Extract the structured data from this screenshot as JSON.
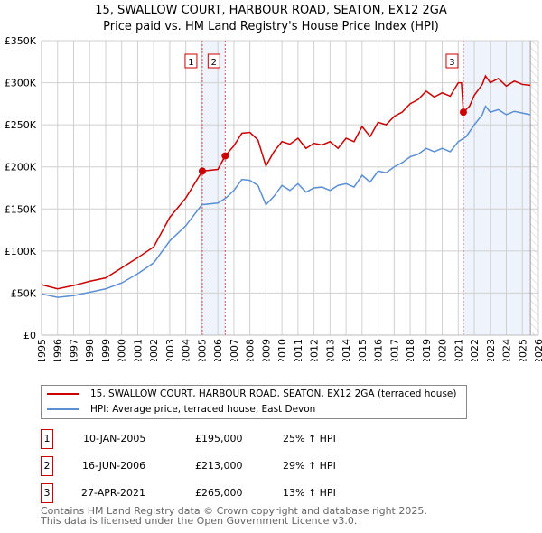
{
  "chart_data": {
    "type": "line",
    "title": "15, SWALLOW COURT, HARBOUR ROAD, SEATON, EX12 2GA",
    "subtitle": "Price paid vs. HM Land Registry's House Price Index (HPI)",
    "xlim": [
      1995,
      2026
    ],
    "ylim": [
      0,
      350000
    ],
    "x_ticks": [
      "1995",
      "1996",
      "1997",
      "1998",
      "1999",
      "2000",
      "2001",
      "2002",
      "2003",
      "2004",
      "2005",
      "2006",
      "2007",
      "2008",
      "2009",
      "2010",
      "2011",
      "2012",
      "2013",
      "2014",
      "2015",
      "2016",
      "2017",
      "2018",
      "2019",
      "2020",
      "2021",
      "2022",
      "2023",
      "2024",
      "2025",
      "2026"
    ],
    "y_ticks": [
      {
        "v": 0,
        "l": "£0"
      },
      {
        "v": 50000,
        "l": "£50K"
      },
      {
        "v": 100000,
        "l": "£100K"
      },
      {
        "v": 150000,
        "l": "£150K"
      },
      {
        "v": 200000,
        "l": "£200K"
      },
      {
        "v": 250000,
        "l": "£250K"
      },
      {
        "v": 300000,
        "l": "£300K"
      },
      {
        "v": 350000,
        "l": "£350K"
      }
    ],
    "grid": true,
    "series": [
      {
        "name": "15, SWALLOW COURT, HARBOUR ROAD, SEATON, EX12 2GA (terraced house)",
        "color": "#cc0000",
        "x": [
          1995,
          1996,
          1997,
          1998,
          1999,
          2000,
          2001,
          2002,
          2003,
          2004,
          2005.03,
          2006,
          2006.46,
          2007,
          2007.5,
          2008,
          2008.5,
          2009,
          2009.5,
          2010,
          2010.5,
          2011,
          2011.5,
          2012,
          2012.5,
          2013,
          2013.5,
          2014,
          2014.5,
          2015,
          2015.5,
          2016,
          2016.5,
          2017,
          2017.5,
          2018,
          2018.5,
          2019,
          2019.5,
          2020,
          2020.5,
          2021,
          2021.2,
          2021.32,
          2021.7,
          2022,
          2022.5,
          2022.7,
          2023,
          2023.5,
          2024,
          2024.5,
          2025,
          2025.5
        ],
        "y": [
          60000,
          55000,
          59000,
          64000,
          68000,
          80000,
          92000,
          105000,
          140000,
          163000,
          195000,
          197000,
          213000,
          225000,
          240000,
          241000,
          232000,
          201000,
          218000,
          230000,
          227000,
          234000,
          222000,
          228000,
          226000,
          230000,
          222000,
          234000,
          230000,
          248000,
          236000,
          253000,
          250000,
          260000,
          265000,
          275000,
          280000,
          290000,
          283000,
          288000,
          284000,
          300000,
          300000,
          265000,
          272000,
          285000,
          298000,
          308000,
          300000,
          305000,
          296000,
          302000,
          298000,
          297000
        ]
      },
      {
        "name": "HPI: Average price, terraced house, East Devon",
        "color": "#5b8fd4",
        "x": [
          1995,
          1996,
          1997,
          1998,
          1999,
          2000,
          2001,
          2002,
          2003,
          2004,
          2005,
          2006,
          2006.5,
          2007,
          2007.5,
          2008,
          2008.5,
          2009,
          2009.5,
          2010,
          2010.5,
          2011,
          2011.5,
          2012,
          2012.5,
          2013,
          2013.5,
          2014,
          2014.5,
          2015,
          2015.5,
          2016,
          2016.5,
          2017,
          2017.5,
          2018,
          2018.5,
          2019,
          2019.5,
          2020,
          2020.5,
          2021,
          2021.5,
          2022,
          2022.5,
          2022.7,
          2023,
          2023.5,
          2024,
          2024.5,
          2025,
          2025.5
        ],
        "y": [
          49000,
          45000,
          47000,
          51000,
          55000,
          62000,
          73000,
          86000,
          112000,
          130000,
          155000,
          157000,
          163000,
          172000,
          185000,
          184000,
          178000,
          155000,
          165000,
          178000,
          172000,
          180000,
          170000,
          175000,
          176000,
          172000,
          178000,
          180000,
          176000,
          190000,
          182000,
          195000,
          193000,
          200000,
          205000,
          212000,
          215000,
          222000,
          218000,
          222000,
          218000,
          230000,
          236000,
          250000,
          262000,
          272000,
          265000,
          268000,
          262000,
          266000,
          264000,
          262000
        ]
      }
    ],
    "sales": [
      {
        "n": "1",
        "x": 2005.03,
        "y": 195000,
        "date": "10-JAN-2005",
        "price": "£195,000",
        "hpi": "25% ↑ HPI"
      },
      {
        "n": "2",
        "x": 2006.46,
        "y": 213000,
        "date": "16-JUN-2006",
        "price": "£213,000",
        "hpi": "29% ↑ HPI"
      },
      {
        "n": "3",
        "x": 2021.32,
        "y": 265000,
        "date": "27-APR-2021",
        "price": "£265,000",
        "hpi": "13% ↑ HPI"
      }
    ],
    "shaded": [
      [
        2005.03,
        2006.46
      ],
      [
        2021.32,
        2025.5
      ]
    ],
    "hatched_from": 2025.5,
    "legend": "below"
  },
  "footer": [
    "Contains HM Land Registry data © Crown copyright and database right 2025.",
    "This data is licensed under the Open Government Licence v3.0."
  ]
}
